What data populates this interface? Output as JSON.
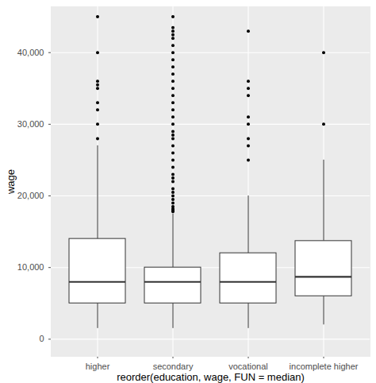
{
  "chart_data": {
    "type": "box",
    "x_label": "reorder(education, wage, FUN = median)",
    "y_label": "wage",
    "categories": [
      "higher",
      "secondary",
      "vocational",
      "incomplete higher"
    ],
    "min": [
      1500,
      1500,
      1500,
      2000
    ],
    "q1": [
      5000,
      5000,
      5000,
      6000
    ],
    "median": [
      8000,
      8000,
      8000,
      8700
    ],
    "q3": [
      14000,
      10000,
      12000,
      13700
    ],
    "max": [
      27000,
      17500,
      20000,
      25000
    ],
    "outliers": [
      [
        28000,
        30000,
        32000,
        33000,
        35000,
        35500,
        36000,
        40000,
        45000
      ],
      [
        17800,
        18000,
        18200,
        18500,
        19000,
        19500,
        20000,
        20500,
        21000,
        22000,
        22500,
        23000,
        24000,
        25000,
        26000,
        27000,
        28000,
        28500,
        29000,
        30000,
        31000,
        32000,
        33000,
        34000,
        35000,
        36000,
        37000,
        38000,
        39000,
        40000,
        41000,
        42000,
        42500,
        43000,
        43500,
        45000
      ],
      [
        25000,
        27000,
        28000,
        30000,
        31000,
        34000,
        35000,
        36000,
        43000
      ],
      [
        30000,
        40000
      ]
    ],
    "color": "#ffffff",
    "ylim": [
      -2400,
      46400
    ],
    "yticks": [
      0,
      10000,
      20000,
      30000,
      40000
    ],
    "grid": true
  }
}
